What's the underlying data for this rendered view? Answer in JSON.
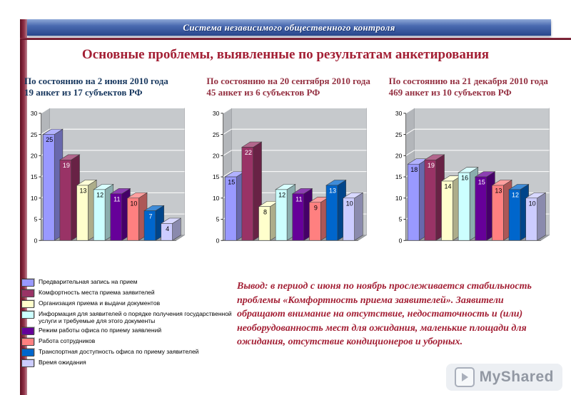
{
  "header": {
    "banner": "Система независимого общественного контроля"
  },
  "title": "Основные проблемы, выявленные по результатам анкетирования",
  "series_colors": [
    "#9999FF",
    "#993366",
    "#FFFFCC",
    "#CCFFFF",
    "#660099",
    "#FF8080",
    "#0066CC",
    "#CCCCFF"
  ],
  "legend": {
    "position": "bottom-left",
    "items": [
      {
        "label": "Предварительная запись на прием"
      },
      {
        "label": "Комфортность места приема заявителей"
      },
      {
        "label": "Организация приема и выдачи документов"
      },
      {
        "label": "Информация для заявителей о порядке получения государственной услуги и требуемые для этого документы"
      },
      {
        "label": "Режим работы офиса по приему заявлений"
      },
      {
        "label": "Работа сотрудников"
      },
      {
        "label": "Транспортная доступность офиса по приему заявителей"
      },
      {
        "label": "Время ожидания"
      }
    ]
  },
  "chart_data": [
    {
      "type": "bar",
      "title": "По состоянию на 2 июня 2010 года 19 анкет из 17 субъектов РФ",
      "title_line1": "По состоянию на 2 июня 2010 года",
      "title_line2": "19 анкет из 17 субъектов РФ",
      "title_color": "#17375E",
      "categories": [
        "Предварительная запись на прием",
        "Комфортность места приема заявителей",
        "Организация приема и выдачи документов",
        "Информация для заявителей о порядке получения государственной услуги и требуемые для этого документы",
        "Режим работы офиса по приему заявлений",
        "Работа сотрудников",
        "Транспортная доступность офиса по приему заявителей",
        "Время ожидания"
      ],
      "values": [
        25,
        19,
        13,
        12,
        11,
        10,
        7,
        4
      ],
      "xlabel": "",
      "ylabel": "",
      "ylim": [
        0,
        30
      ],
      "yticks": [
        0,
        5,
        10,
        15,
        20,
        25,
        30
      ],
      "grid": true
    },
    {
      "type": "bar",
      "title": "По состоянию на 20 сентября 2010 года 45 анкет из 6 субъектов РФ",
      "title_line1": "По состоянию на 20 сентября 2010 года",
      "title_line2": "45 анкет из 6 субъектов РФ",
      "title_color": "#943041",
      "categories": [
        "Предварительная запись на прием",
        "Комфортность места приема заявителей",
        "Организация приема и выдачи документов",
        "Информация для заявителей о порядке получения государственной услуги и требуемые для этого документы",
        "Режим работы офиса по приему заявлений",
        "Работа сотрудников",
        "Транспортная доступность офиса по приему заявителей",
        "Время ожидания"
      ],
      "values": [
        15,
        22,
        8,
        12,
        11,
        9,
        13,
        10
      ],
      "xlabel": "",
      "ylabel": "",
      "ylim": [
        0,
        30
      ],
      "yticks": [
        0,
        5,
        10,
        15,
        20,
        25,
        30
      ],
      "grid": true
    },
    {
      "type": "bar",
      "title": "По состоянию на 21 декабря 2010 года 469 анкет из 10 субъектов РФ",
      "title_line1": "По состоянию на 21 декабря 2010 года",
      "title_line2": "469 анкет из 10 субъектов РФ",
      "title_color": "#943041",
      "categories": [
        "Предварительная запись на прием",
        "Комфортность места приема заявителей",
        "Организация приема и выдачи документов",
        "Информация для заявителей о порядке получения государственной услуги и требуемые для этого документы",
        "Режим работы офиса по приему заявлений",
        "Работа сотрудников",
        "Транспортная доступность офиса по приему заявителей",
        "Время ожидания"
      ],
      "values": [
        18,
        19,
        14,
        16,
        15,
        13,
        12,
        10
      ],
      "xlabel": "",
      "ylabel": "",
      "ylim": [
        0,
        30
      ],
      "yticks": [
        0,
        5,
        10,
        15,
        20,
        25,
        30
      ],
      "grid": true
    }
  ],
  "conclusion": "Вывод: в период с июня по ноябрь прослеживается стабильность проблемы «Комфортность приема заявителей». Заявители обращают внимание на отсутствие, недостаточность и (или) необорудованность мест для ожидания, маленькие площади для ожидания, отсутствие кондиционеров и уборных.",
  "watermark": {
    "text": "MyShared"
  }
}
